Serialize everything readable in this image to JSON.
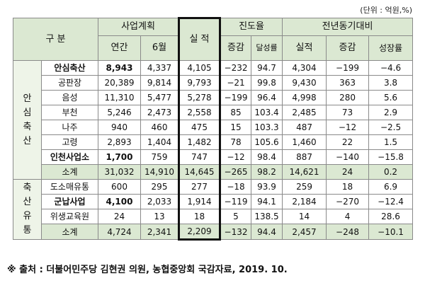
{
  "unit_note": "(단위 : 억원,%)",
  "headers": {
    "division": "구   분",
    "plan": "사업계획",
    "plan_annual": "연간",
    "plan_june": "6월",
    "actual": "실 적",
    "progress": "진도율",
    "progress_change": "증감",
    "progress_achieve": "달성률",
    "yoy": "전년동기대비",
    "yoy_actual": "실적",
    "yoy_change": "증감",
    "yoy_growth": "성장률"
  },
  "groups": {
    "g1_label": [
      "안",
      "심",
      "축",
      "산"
    ],
    "g2_label": [
      "축",
      "산",
      "유",
      "통"
    ]
  },
  "group1": [
    {
      "name": "안심축산",
      "bold": true,
      "values": [
        "8,943",
        "4,337",
        "4,105",
        "−232",
        "94.7",
        "4,304",
        "−199",
        "−4.6"
      ]
    },
    {
      "name": "공판장",
      "values": [
        "20,389",
        "9,814",
        "9,793",
        "−21",
        "99.8",
        "9,430",
        "363",
        "3.8"
      ]
    },
    {
      "name": "음성",
      "values": [
        "11,310",
        "5,477",
        "5,278",
        "−199",
        "96.4",
        "4,998",
        "280",
        "5.6"
      ]
    },
    {
      "name": "부천",
      "values": [
        "5,246",
        "2,473",
        "2,558",
        "85",
        "103.4",
        "2,485",
        "73",
        "2.9"
      ]
    },
    {
      "name": "나주",
      "values": [
        "940",
        "460",
        "475",
        "15",
        "103.3",
        "487",
        "−12",
        "−2.5"
      ]
    },
    {
      "name": "고령",
      "values": [
        "2,893",
        "1,404",
        "1,482",
        "78",
        "105.6",
        "1,460",
        "22",
        "1.5"
      ]
    },
    {
      "name": "인천사업소",
      "bold": true,
      "values": [
        "1,700",
        "759",
        "747",
        "−12",
        "98.4",
        "887",
        "−140",
        "−15.8"
      ]
    }
  ],
  "group1_subtotal": {
    "name": "소계",
    "values": [
      "31,032",
      "14,910",
      "14,645",
      "−265",
      "98.2",
      "14,621",
      "24",
      "0.2"
    ]
  },
  "group2": [
    {
      "name": "도소매유통",
      "values": [
        "600",
        "295",
        "277",
        "−18",
        "93.9",
        "259",
        "18",
        "6.9"
      ]
    },
    {
      "name": "군납사업",
      "bold": true,
      "values": [
        "4,100",
        "2,033",
        "1,914",
        "−119",
        "94.1",
        "2,184",
        "−270",
        "−12.4"
      ]
    },
    {
      "name": "위생교육원",
      "values": [
        "24",
        "13",
        "18",
        "5",
        "138.5",
        "14",
        "4",
        "28.6"
      ]
    }
  ],
  "group2_subtotal": {
    "name": "소계",
    "values": [
      "4,724",
      "2,341",
      "2,209",
      "−132",
      "94.4",
      "2,457",
      "−248",
      "−10.1"
    ]
  },
  "source": "※ 출처 : 더불어민주당 김현권 의원, 농협중앙회 국감자료, 2019. 10."
}
